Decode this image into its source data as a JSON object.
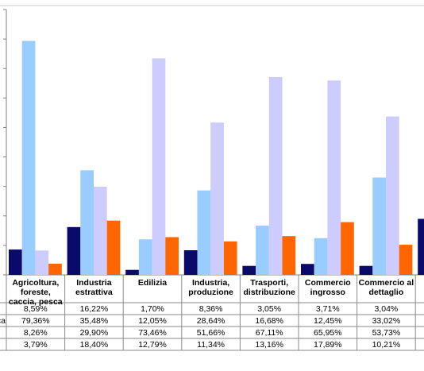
{
  "chart_data": {
    "type": "bar",
    "categories": [
      "Agricoltura, foreste, caccia, pesca",
      "Industria estrattiva",
      "Edilizia",
      "Industria, produzione",
      "Trasporti, distribuzione",
      "Commercio ingrosso",
      "Commercio al dettaglio"
    ],
    "category_lines": [
      [
        "Agricoltura,",
        "foreste,",
        "caccia, pesca"
      ],
      [
        "Industria",
        "estrattiva"
      ],
      [
        "Edilizia"
      ],
      [
        "Industria,",
        "produzione"
      ],
      [
        "Trasporti,",
        "distribuzione"
      ],
      [
        "Commercio",
        "ingrosso"
      ],
      [
        "Commercio al",
        "dettaglio"
      ]
    ],
    "series": [
      {
        "name": "",
        "color": "#0a0a6b",
        "values": [
          8.59,
          16.22,
          1.7,
          8.36,
          3.05,
          3.71,
          3.04
        ],
        "labels": [
          "8,59%",
          "16,22%",
          "1,70%",
          "8,36%",
          "3,05%",
          "3,71%",
          "3,04%"
        ]
      },
      {
        "name": "",
        "color": "#99ccff",
        "values": [
          79.36,
          35.48,
          12.05,
          28.64,
          16.68,
          12.45,
          33.02
        ],
        "labels": [
          "79,36%",
          "35,48%",
          "12,05%",
          "28,64%",
          "16,68%",
          "12,45%",
          "33,02%"
        ]
      },
      {
        "name": "",
        "color": "#ccccff",
        "values": [
          8.26,
          29.9,
          73.46,
          51.66,
          67.11,
          65.95,
          53.73
        ],
        "labels": [
          "8,26%",
          "29,90%",
          "73,46%",
          "51,66%",
          "67,11%",
          "65,95%",
          "53,73%"
        ]
      },
      {
        "name": "",
        "color": "#ff6600",
        "values": [
          3.79,
          18.4,
          12.79,
          11.34,
          13.16,
          17.89,
          10.21
        ],
        "labels": [
          "3,79%",
          "18,40%",
          "12,79%",
          "11,34%",
          "13,16%",
          "17,89%",
          "10,21%"
        ]
      }
    ],
    "ylim": [
      0,
      90
    ],
    "grid": false,
    "partial": {
      "color": "#0a0a6b",
      "row_suffixes": [
        "",
        "sca",
        "",
        ""
      ],
      "category_glyph": "",
      "bar_value": 19
    }
  }
}
